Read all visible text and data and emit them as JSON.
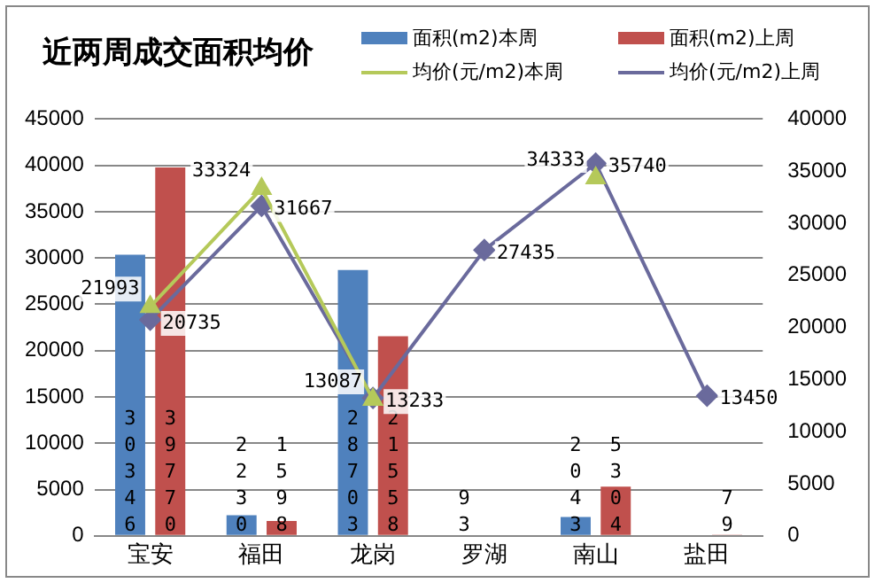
{
  "chart_data": {
    "type": "bar",
    "title": "近两周成交面积均价",
    "categories": [
      "宝安",
      "福田",
      "龙岗",
      "罗湖",
      "南山",
      "盐田"
    ],
    "series": [
      {
        "name": "面积(m2)本周",
        "color": "#4f81bd",
        "values": [
          30346,
          2230,
          28703,
          93,
          2043,
          null
        ]
      },
      {
        "name": "面积(m2)上周",
        "color": "#c0504d",
        "values": [
          39770,
          1598,
          21558,
          null,
          5304,
          79
        ]
      },
      {
        "name": "均价(元/m2)本周",
        "type": "line",
        "axis": "y2",
        "marker": "triangle",
        "color": "#b5c95a",
        "values": [
          21993,
          33324,
          13087,
          null,
          34333,
          null
        ]
      },
      {
        "name": "均价(元/m2)上周",
        "type": "line",
        "axis": "y2",
        "marker": "diamond",
        "color": "#6a6a9c",
        "values": [
          20735,
          31667,
          13233,
          27435,
          35740,
          13450
        ]
      }
    ],
    "ylim": [
      0,
      45000
    ],
    "yticks": [
      0,
      5000,
      10000,
      15000,
      20000,
      25000,
      30000,
      35000,
      40000,
      45000
    ],
    "y2lim": [
      0,
      40000
    ],
    "y2ticks": [
      0,
      5000,
      10000,
      15000,
      20000,
      25000,
      30000,
      35000,
      40000
    ],
    "grid": "y",
    "legend": "top right",
    "data_labels": true
  }
}
